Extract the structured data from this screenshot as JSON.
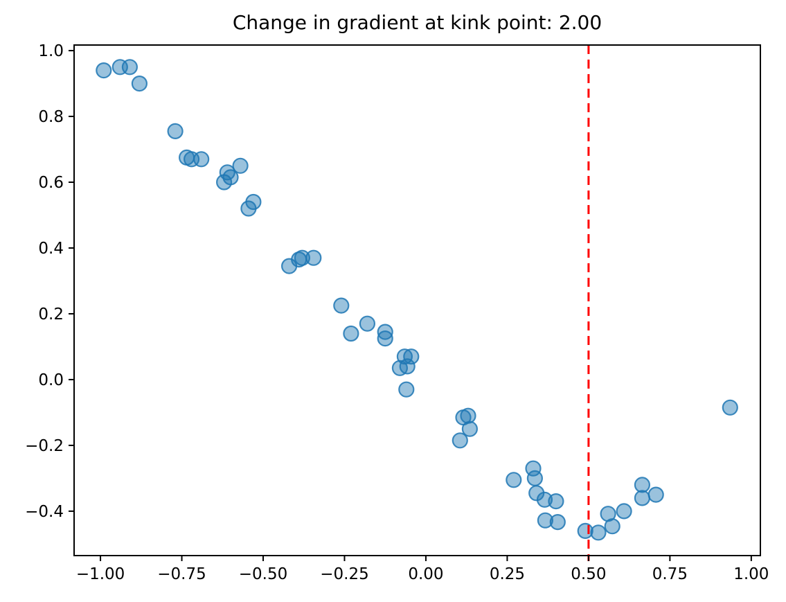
{
  "figure": {
    "title": "Change in gradient at kink point: 2.00"
  },
  "chart_data": {
    "type": "scatter",
    "title": "Change in gradient at kink point: 2.00",
    "xlabel": "",
    "ylabel": "",
    "grid": false,
    "legend": "none",
    "xlim": [
      -1.081,
      1.028
    ],
    "ylim": [
      -0.535,
      1.017
    ],
    "x_ticks": {
      "values": [
        -1.0,
        -0.75,
        -0.5,
        -0.25,
        0.0,
        0.25,
        0.5,
        0.75,
        1.0
      ],
      "labels": [
        "−1.00",
        "−0.75",
        "−0.50",
        "−0.25",
        "0.00",
        "0.25",
        "0.50",
        "0.75",
        "1.00"
      ]
    },
    "y_ticks": {
      "values": [
        1.0,
        0.8,
        0.6,
        0.4,
        0.2,
        0.0,
        -0.2,
        -0.4
      ],
      "labels": [
        "1.0",
        "0.8",
        "0.6",
        "0.4",
        "0.2",
        "0.0",
        "−0.2",
        "−0.4"
      ]
    },
    "series": [
      {
        "name": "scatter-samples",
        "marker": "circle",
        "color": "#1f77b4",
        "alpha": 0.45,
        "points": [
          [
            -0.99,
            0.94
          ],
          [
            -0.94,
            0.95
          ],
          [
            -0.91,
            0.95
          ],
          [
            -0.88,
            0.9
          ],
          [
            -0.77,
            0.755
          ],
          [
            -0.735,
            0.675
          ],
          [
            -0.72,
            0.67
          ],
          [
            -0.69,
            0.67
          ],
          [
            -0.62,
            0.6
          ],
          [
            -0.61,
            0.63
          ],
          [
            -0.6,
            0.615
          ],
          [
            -0.57,
            0.65
          ],
          [
            -0.545,
            0.52
          ],
          [
            -0.53,
            0.54
          ],
          [
            -0.42,
            0.345
          ],
          [
            -0.39,
            0.365
          ],
          [
            -0.38,
            0.37
          ],
          [
            -0.345,
            0.37
          ],
          [
            -0.26,
            0.225
          ],
          [
            -0.23,
            0.14
          ],
          [
            -0.18,
            0.17
          ],
          [
            -0.125,
            0.145
          ],
          [
            -0.125,
            0.125
          ],
          [
            -0.08,
            0.035
          ],
          [
            -0.065,
            0.07
          ],
          [
            -0.057,
            0.04
          ],
          [
            -0.045,
            0.07
          ],
          [
            -0.06,
            -0.03
          ],
          [
            0.105,
            -0.185
          ],
          [
            0.115,
            -0.115
          ],
          [
            0.13,
            -0.11
          ],
          [
            0.135,
            -0.15
          ],
          [
            0.27,
            -0.305
          ],
          [
            0.33,
            -0.27
          ],
          [
            0.335,
            -0.3
          ],
          [
            0.34,
            -0.345
          ],
          [
            0.365,
            -0.365
          ],
          [
            0.4,
            -0.37
          ],
          [
            0.367,
            -0.428
          ],
          [
            0.405,
            -0.433
          ],
          [
            0.49,
            -0.46
          ],
          [
            0.53,
            -0.465
          ],
          [
            0.56,
            -0.408
          ],
          [
            0.573,
            -0.446
          ],
          [
            0.609,
            -0.4
          ],
          [
            0.665,
            -0.32
          ],
          [
            0.665,
            -0.36
          ],
          [
            0.707,
            -0.35
          ],
          [
            0.935,
            -0.085
          ]
        ]
      }
    ],
    "vline": {
      "x": 0.5,
      "color": "#ff0000",
      "style": "dashed"
    }
  },
  "style": {
    "background": "#ffffff",
    "spine_color": "#000000",
    "scatter_color": "#1f77b4",
    "vline_color": "#ff0000"
  }
}
